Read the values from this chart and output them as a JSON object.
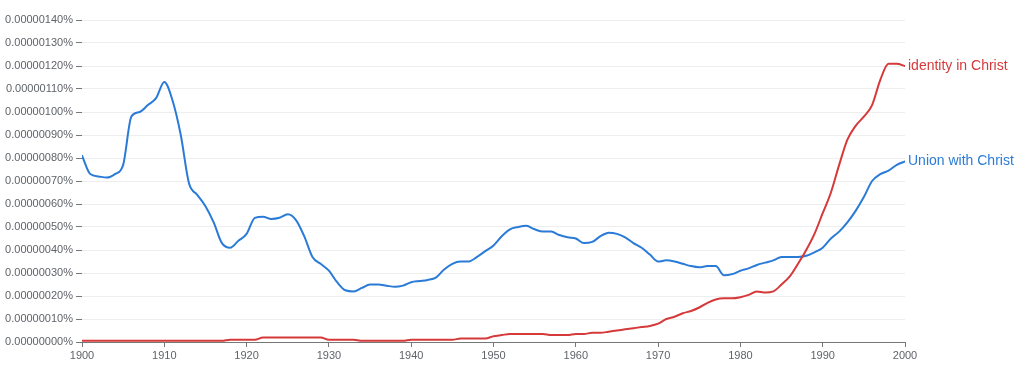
{
  "chart_data": {
    "type": "line",
    "x": [
      1900,
      1901,
      1902,
      1903,
      1904,
      1905,
      1906,
      1907,
      1908,
      1909,
      1910,
      1911,
      1912,
      1913,
      1914,
      1915,
      1916,
      1917,
      1918,
      1919,
      1920,
      1921,
      1922,
      1923,
      1924,
      1925,
      1926,
      1927,
      1928,
      1929,
      1930,
      1931,
      1932,
      1933,
      1934,
      1935,
      1936,
      1937,
      1938,
      1939,
      1940,
      1941,
      1942,
      1943,
      1944,
      1945,
      1946,
      1947,
      1948,
      1949,
      1950,
      1951,
      1952,
      1953,
      1954,
      1955,
      1956,
      1957,
      1958,
      1959,
      1960,
      1961,
      1962,
      1963,
      1964,
      1965,
      1966,
      1967,
      1968,
      1969,
      1970,
      1971,
      1972,
      1973,
      1974,
      1975,
      1976,
      1977,
      1978,
      1979,
      1980,
      1981,
      1982,
      1983,
      1984,
      1985,
      1986,
      1987,
      1988,
      1989,
      1990,
      1991,
      1992,
      1993,
      1994,
      1995,
      1996,
      1997,
      1998,
      1999,
      2000
    ],
    "series": [
      {
        "name": "identity in Christ",
        "color": "#d6393a",
        "values": [
          5e-09,
          5e-09,
          5e-09,
          5e-09,
          5e-09,
          5e-09,
          5e-09,
          5e-09,
          5e-09,
          5e-09,
          5e-09,
          5e-09,
          5e-09,
          5e-09,
          5e-09,
          5e-09,
          5e-09,
          5e-09,
          1e-08,
          1e-08,
          1e-08,
          1e-08,
          2e-08,
          2e-08,
          2e-08,
          2e-08,
          2e-08,
          2e-08,
          2e-08,
          2e-08,
          1e-08,
          1e-08,
          1e-08,
          1e-08,
          5e-09,
          5e-09,
          5e-09,
          5e-09,
          5e-09,
          5e-09,
          1e-08,
          1e-08,
          1e-08,
          1e-08,
          1e-08,
          1e-08,
          1.5e-08,
          1.5e-08,
          1.5e-08,
          1.5e-08,
          2.5e-08,
          3e-08,
          3.5e-08,
          3.5e-08,
          3.5e-08,
          3.5e-08,
          3.5e-08,
          3e-08,
          3e-08,
          3e-08,
          3.5e-08,
          3.5e-08,
          4e-08,
          4e-08,
          4.5e-08,
          5e-08,
          5.5e-08,
          6e-08,
          6.5e-08,
          7e-08,
          8e-08,
          1e-07,
          1.1e-07,
          1.25e-07,
          1.35e-07,
          1.5e-07,
          1.7e-07,
          1.85e-07,
          1.9e-07,
          1.9e-07,
          1.95e-07,
          2.05e-07,
          2.2e-07,
          2.15e-07,
          2.2e-07,
          2.5e-07,
          2.85e-07,
          3.4e-07,
          4e-07,
          4.7e-07,
          5.6e-07,
          6.5e-07,
          7.7e-07,
          8.8e-07,
          9.4e-07,
          9.8e-07,
          1.03e-06,
          1.14e-06,
          1.21e-06,
          1.21e-06,
          1.2e-06
        ]
      },
      {
        "name": "Union with Christ",
        "color": "#2a7bd7",
        "values": [
          8.1e-07,
          7.3e-07,
          7.2e-07,
          7.15e-07,
          7.3e-07,
          7.7e-07,
          9.8e-07,
          1e-06,
          1.03e-06,
          1.06e-06,
          1.13e-06,
          1.05e-06,
          9e-07,
          6.9e-07,
          6.4e-07,
          5.9e-07,
          5.2e-07,
          4.3e-07,
          4.1e-07,
          4.4e-07,
          4.7e-07,
          5.4e-07,
          5.45e-07,
          5.35e-07,
          5.4e-07,
          5.55e-07,
          5.3e-07,
          4.6e-07,
          3.7e-07,
          3.4e-07,
          3.1e-07,
          2.6e-07,
          2.25e-07,
          2.2e-07,
          2.35e-07,
          2.5e-07,
          2.5e-07,
          2.45e-07,
          2.4e-07,
          2.45e-07,
          2.6e-07,
          2.65e-07,
          2.7e-07,
          2.8e-07,
          3.15e-07,
          3.4e-07,
          3.5e-07,
          3.5e-07,
          3.7e-07,
          3.95e-07,
          4.2e-07,
          4.6e-07,
          4.9e-07,
          5e-07,
          5.05e-07,
          4.9e-07,
          4.8e-07,
          4.8e-07,
          4.65e-07,
          4.55e-07,
          4.5e-07,
          4.3e-07,
          4.35e-07,
          4.6e-07,
          4.75e-07,
          4.7e-07,
          4.55e-07,
          4.3e-07,
          4.1e-07,
          3.8e-07,
          3.5e-07,
          3.55e-07,
          3.5e-07,
          3.4e-07,
          3.3e-07,
          3.25e-07,
          3.3e-07,
          3.3e-07,
          2.9e-07,
          2.95e-07,
          3.1e-07,
          3.2e-07,
          3.35e-07,
          3.45e-07,
          3.55e-07,
          3.7e-07,
          3.7e-07,
          3.7e-07,
          3.75e-07,
          3.9e-07,
          4.1e-07,
          4.5e-07,
          4.8e-07,
          5.2e-07,
          5.7e-07,
          6.3e-07,
          7e-07,
          7.3e-07,
          7.45e-07,
          7.7e-07,
          7.85e-07
        ]
      }
    ],
    "xlim": [
      1900,
      2000
    ],
    "xticks": [
      1900,
      1910,
      1920,
      1930,
      1940,
      1950,
      1960,
      1970,
      1980,
      1990,
      2000
    ],
    "ylim": [
      0,
      1.4e-06
    ],
    "yticks": [
      {
        "value": 0,
        "label": "0.00000000%"
      },
      {
        "value": 1e-07,
        "label": "0.00000010%"
      },
      {
        "value": 2e-07,
        "label": "0.00000020%"
      },
      {
        "value": 3e-07,
        "label": "0.00000030%"
      },
      {
        "value": 4e-07,
        "label": "0.00000040%"
      },
      {
        "value": 5e-07,
        "label": "0.00000050%"
      },
      {
        "value": 6e-07,
        "label": "0.00000060%"
      },
      {
        "value": 7e-07,
        "label": "0.00000070%"
      },
      {
        "value": 8e-07,
        "label": "0.00000080%"
      },
      {
        "value": 9e-07,
        "label": "0.00000090%"
      },
      {
        "value": 1e-06,
        "label": "0.00000100%"
      },
      {
        "value": 1.1e-06,
        "label": "0.00000110%"
      },
      {
        "value": 1.2e-06,
        "label": "0.00000120%"
      },
      {
        "value": 1.3e-06,
        "label": "0.00000130%"
      },
      {
        "value": 1.4e-06,
        "label": "0.00000140%"
      }
    ],
    "grid": "y",
    "legend": false,
    "marker": "none",
    "line_style": "solid"
  }
}
